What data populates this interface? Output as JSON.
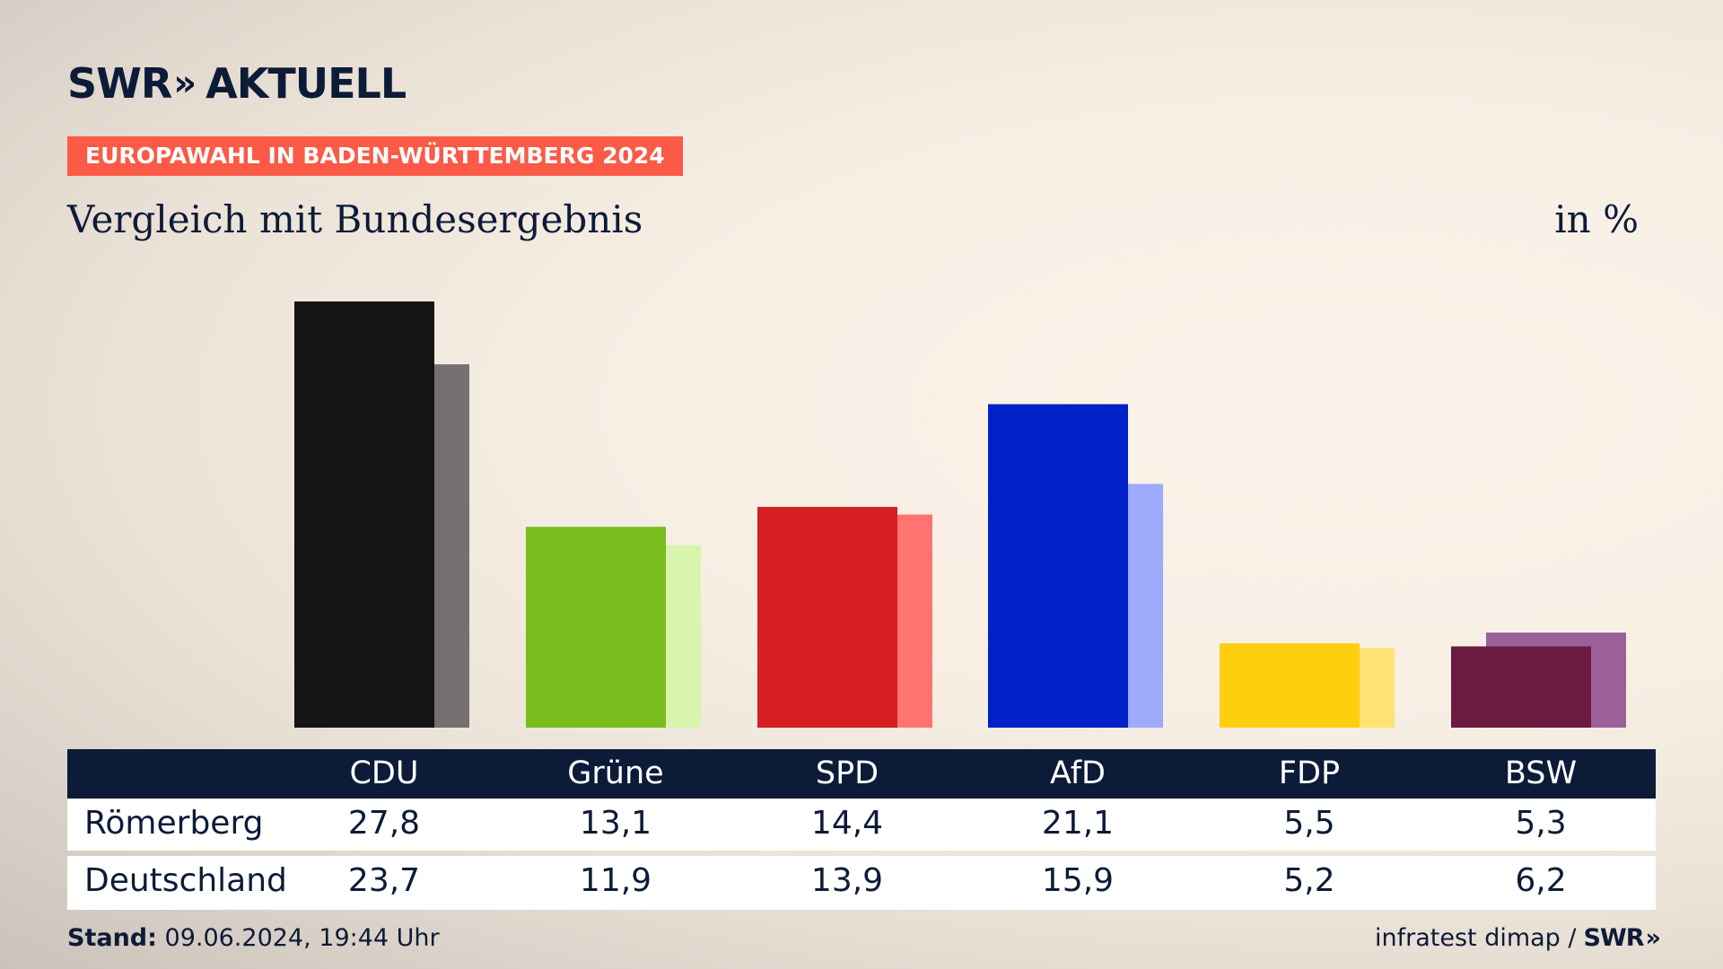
{
  "logo": {
    "brand": "SWR",
    "chevron": "»",
    "section": "AKTUELL"
  },
  "badge": "EUROPAWAHL IN BADEN-WÜRTTEMBERG 2024",
  "subtitle": "Vergleich mit Bundesergebnis",
  "unit": "in %",
  "chart_data": {
    "type": "bar",
    "categories": [
      "CDU",
      "Grüne",
      "SPD",
      "AfD",
      "FDP",
      "BSW"
    ],
    "series": [
      {
        "name": "Römerberg",
        "values": [
          27.8,
          13.1,
          14.4,
          21.1,
          5.5,
          5.3
        ]
      },
      {
        "name": "Deutschland",
        "values": [
          23.7,
          11.9,
          13.9,
          15.9,
          5.2,
          6.2
        ]
      }
    ],
    "colors_primary": [
      "#141414",
      "#78be1e",
      "#d51f21",
      "#0020c8",
      "#ffce0f",
      "#6b1b3f"
    ],
    "colors_secondary": [
      "#747170",
      "#d7f5ab",
      "#ff7470",
      "#9eaafc",
      "#fee373",
      "#9b6098"
    ],
    "ylim": [
      0,
      28
    ]
  },
  "table": {
    "rows": [
      {
        "label": "Römerberg",
        "values": [
          "27,8",
          "13,1",
          "14,4",
          "21,1",
          "5,5",
          "5,3"
        ]
      },
      {
        "label": "Deutschland",
        "values": [
          "23,7",
          "11,9",
          "13,9",
          "15,9",
          "5,2",
          "6,2"
        ]
      }
    ]
  },
  "footer": {
    "stand_label": "Stand:",
    "stand_value": "09.06.2024, 19:44 Uhr",
    "source": "infratest dimap /",
    "brand": "SWR",
    "chevron": "»"
  }
}
